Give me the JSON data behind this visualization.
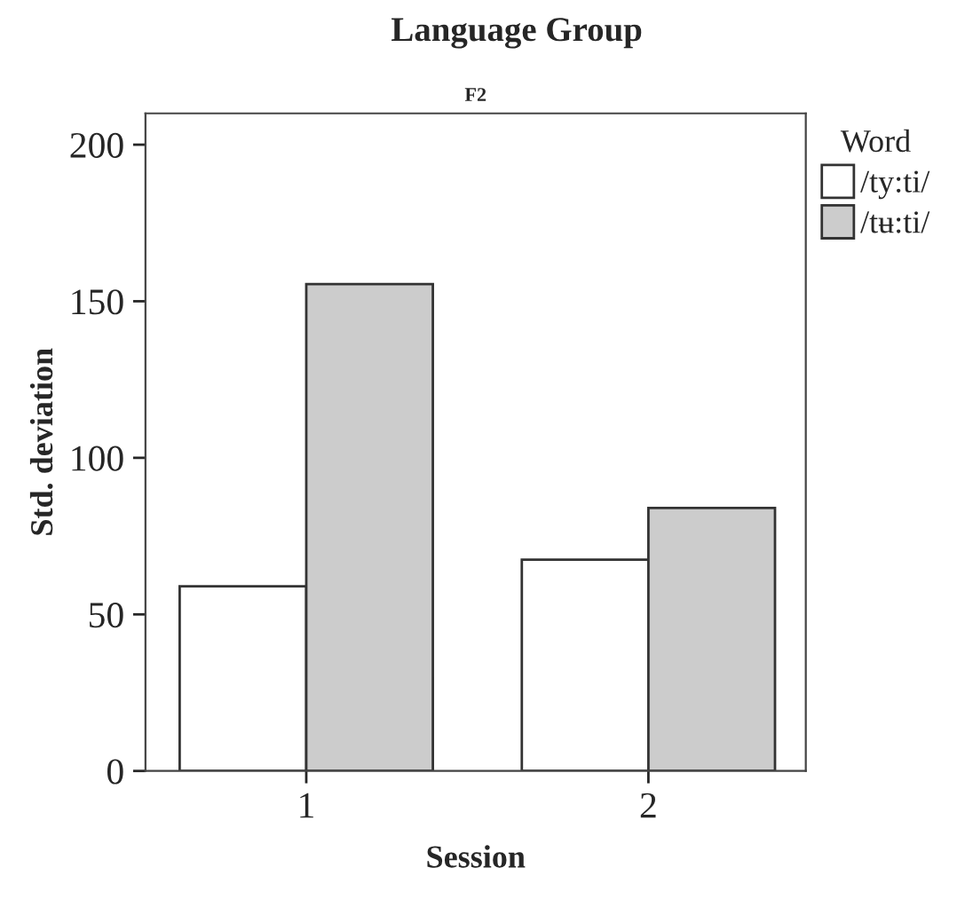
{
  "chart_data": {
    "type": "bar",
    "title": "Language Group",
    "subtitle": "F2",
    "xlabel": "Session",
    "ylabel": "Std. deviation",
    "legend_title": "Word",
    "categories": [
      "1",
      "2"
    ],
    "series": [
      {
        "name": "/ty:ti/",
        "color": "#ffffff",
        "values": [
          59,
          67.5
        ]
      },
      {
        "name": "/tʉ:ti/",
        "color": "#cccccc",
        "values": [
          155.5,
          84
        ]
      }
    ],
    "ylim": [
      0,
      210
    ],
    "yticks": [
      0,
      50,
      100,
      150,
      200
    ],
    "grid": false,
    "legend": "right"
  }
}
